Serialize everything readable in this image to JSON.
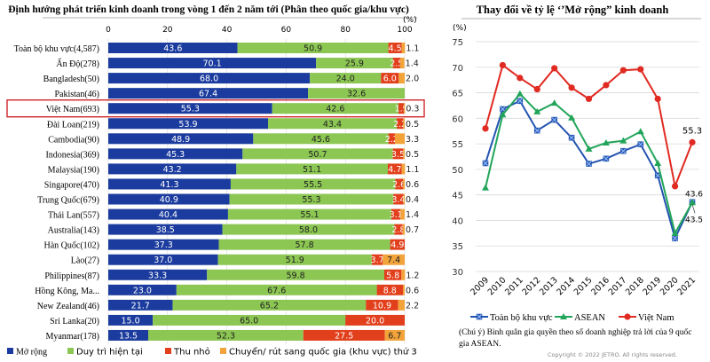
{
  "chart_data": [
    {
      "type": "bar",
      "stacked": true,
      "orientation": "horizontal",
      "title": "Định hướng phát triển kinh doanh trong vòng 1 đến 2 năm tới (Phân theo quốc gia/khu vực)",
      "unit": "(%)",
      "xlim": [
        0,
        100
      ],
      "xticks": [
        "0",
        "20",
        "40",
        "60",
        "80",
        "100"
      ],
      "highlight": "Việt Nam(693)",
      "categories": [
        "Toàn bộ khu vực(4,587)",
        "Ấn Độ(278)",
        "Bangladesh(50)",
        "Pakistan(46)",
        "Việt Nam(693)",
        "Đài Loan(219)",
        "Cambodia(90)",
        "Indonesia(369)",
        "Malaysia(190)",
        "Singapore(470)",
        "Trung Quốc(679)",
        "Thái Lan(557)",
        "Australia(143)",
        "Hàn Quốc(102)",
        "Lào(27)",
        "Philippines(87)",
        "Hồng Kông, Ma...",
        "New Zealand(46)",
        "Sri Lanka(20)",
        "Myanmar(178)"
      ],
      "series": [
        {
          "name": "Mở rộng",
          "color": "#1b3c9e",
          "values": [
            43.6,
            70.1,
            68.0,
            67.4,
            55.3,
            53.9,
            48.9,
            45.3,
            43.2,
            41.3,
            40.9,
            40.4,
            38.5,
            37.3,
            37.0,
            33.3,
            23.0,
            21.7,
            15.0,
            13.5
          ]
        },
        {
          "name": "Duy trì hiện tại",
          "color": "#8cc653",
          "values": [
            50.9,
            25.9,
            24.0,
            32.6,
            42.6,
            43.4,
            45.6,
            50.7,
            51.1,
            55.5,
            55.3,
            55.1,
            58.0,
            57.8,
            51.9,
            59.8,
            67.6,
            65.2,
            65.0,
            52.3
          ]
        },
        {
          "name": "Thu nhỏ",
          "color": "#e2401c",
          "values": [
            4.5,
            2.5,
            6.0,
            0,
            1.9,
            2.2,
            2.2,
            3.5,
            4.7,
            2.6,
            3.4,
            3.1,
            2.8,
            4.9,
            3.7,
            5.8,
            8.8,
            10.9,
            20.0,
            27.5
          ]
        },
        {
          "name": "Chuyển/ rút sang quốc gia (khu vực) thứ 3",
          "color": "#f2a43a",
          "values": [
            1.1,
            1.4,
            2.0,
            0,
            0.3,
            0.5,
            3.3,
            0.5,
            1.1,
            0.6,
            0.4,
            1.4,
            0.7,
            0,
            7.4,
            1.2,
            0.6,
            2.2,
            0,
            6.7
          ]
        }
      ],
      "legend": "bottom"
    },
    {
      "type": "line",
      "title": "Thay đổi về tỷ lệ ‘’Mở rộng” kinh doanh",
      "unit": "(%)",
      "ylim": [
        30,
        75
      ],
      "yticks": [
        "30",
        "35",
        "40",
        "45",
        "50",
        "55",
        "60",
        "65",
        "70",
        "75"
      ],
      "grid": true,
      "x": [
        "2009",
        "2010",
        "2011",
        "2012",
        "2013",
        "2014",
        "2015",
        "2016",
        "2017",
        "2018",
        "2019",
        "2020",
        "2021"
      ],
      "series": [
        {
          "name": "Toàn bộ khu vực",
          "color": "#2354b0",
          "marker": "x-square",
          "values": [
            51.2,
            61.8,
            63.4,
            57.6,
            59.7,
            56.2,
            51.1,
            52.1,
            53.6,
            54.9,
            48.8,
            36.5,
            43.6
          ]
        },
        {
          "name": "ASEAN",
          "color": "#22a55a",
          "marker": "triangle",
          "values": [
            46.4,
            60.7,
            64.8,
            61.3,
            63.0,
            60.1,
            54.0,
            55.2,
            55.6,
            57.4,
            51.2,
            37.5,
            43.5
          ]
        },
        {
          "name": "Việt Nam",
          "color": "#e02a22",
          "marker": "circle",
          "values": [
            58.0,
            70.4,
            67.9,
            65.7,
            69.8,
            66.0,
            63.8,
            66.5,
            69.4,
            69.6,
            63.8,
            46.7,
            55.3
          ]
        }
      ],
      "annotations": [
        "55.3",
        "43.6",
        "43.5"
      ],
      "legend": "bottom",
      "note": "(Chú ý) Bình quân gia quyền theo số doanh nghiệp trả lời của 9 quốc gia ASEAN.",
      "copyright": "Copyright © 2022 JETRO. All rights reserved."
    }
  ]
}
